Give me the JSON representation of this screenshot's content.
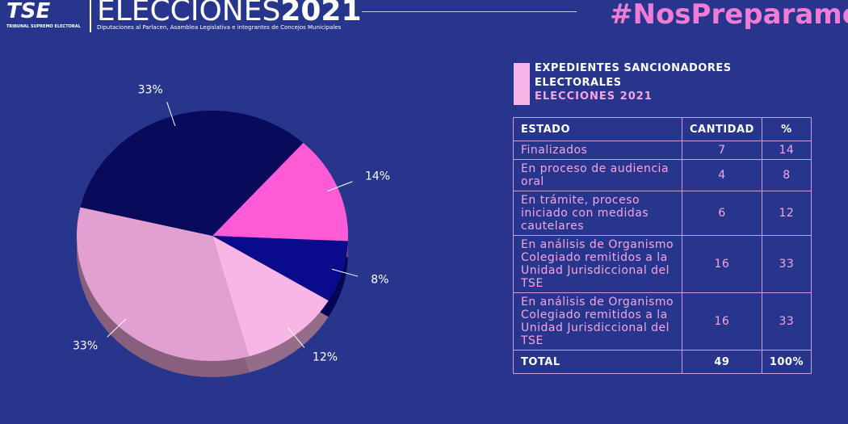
{
  "header": {
    "logo": "TSE",
    "logo_sub": "TRIBUNAL SUPREMO ELECTORAL",
    "title": "ELECCIONES",
    "year": "2021",
    "subtitle": "Diputaciones al Parlacen, Asamblea Legislativa e integrantes de Concejos Municipales",
    "hashtag": "#NosPreparamos"
  },
  "chart_data": {
    "type": "pie",
    "values": [
      14,
      8,
      12,
      33,
      33
    ],
    "value_labels": [
      "14%",
      "8%",
      "12%",
      "33%",
      "33%"
    ],
    "colors": [
      "#ff5bd6",
      "#0a0a8c",
      "#f8b6e6",
      "#e2a0d2",
      "#0a0a5c"
    ]
  },
  "table": {
    "title": "EXPEDIENTES SANCIONADORES ELECTORALES",
    "subtitle": "ELECCIONES 2021",
    "headers": [
      "ESTADO",
      "CANTIDAD",
      "%"
    ],
    "rows": [
      [
        "Finalizados",
        "7",
        "14"
      ],
      [
        "En proceso de audiencia oral",
        "4",
        "8"
      ],
      [
        "En trámite, proceso iniciado con medidas cautelares",
        "6",
        "12"
      ],
      [
        "En análisis de Organismo Colegiado remitidos a la Unidad Jurisdiccional del TSE",
        "16",
        "33"
      ],
      [
        "En análisis de Organismo Colegiado remitidos a la Unidad Jurisdiccional del TSE",
        "16",
        "33"
      ]
    ],
    "total": [
      "TOTAL",
      "49",
      "100%"
    ]
  }
}
